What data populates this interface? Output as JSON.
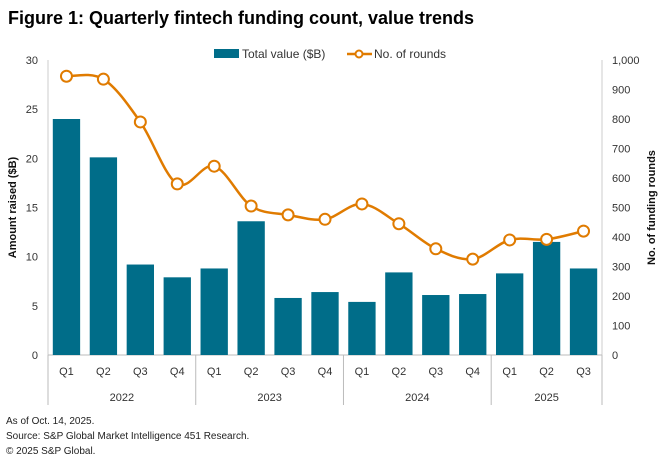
{
  "chart_data": {
    "type": "bar+line",
    "title": "Figure 1: Quarterly fintech funding count, value trends",
    "categories": [
      "Q1",
      "Q2",
      "Q3",
      "Q4",
      "Q1",
      "Q2",
      "Q3",
      "Q4",
      "Q1",
      "Q2",
      "Q3",
      "Q4",
      "Q1",
      "Q2",
      "Q3"
    ],
    "years": [
      "2022",
      "2023",
      "2024",
      "2025"
    ],
    "series": [
      {
        "name": "Total value ($B)",
        "type": "bar",
        "axis": "left",
        "color": "#006d89",
        "values": [
          24.0,
          20.1,
          9.2,
          7.9,
          8.8,
          13.6,
          5.8,
          6.4,
          5.4,
          8.4,
          6.1,
          6.2,
          8.3,
          11.5,
          8.8
        ]
      },
      {
        "name": "No. of rounds",
        "type": "line",
        "axis": "right",
        "color": "#e07b00",
        "values": [
          945,
          935,
          790,
          580,
          640,
          505,
          475,
          460,
          512,
          445,
          360,
          325,
          390,
          392,
          420
        ]
      }
    ],
    "ylabel": "Amount raised ($B)",
    "ylim": [
      0,
      30
    ],
    "yticks": [
      "0",
      "5",
      "10",
      "15",
      "20",
      "25",
      "30"
    ],
    "y2label": "No. of funding rounds",
    "y2lim": [
      0,
      1000
    ],
    "y2ticks": [
      "0",
      "100",
      "200",
      "300",
      "400",
      "500",
      "600",
      "700",
      "800",
      "900",
      "1,000"
    ],
    "legend": "top-center"
  },
  "footer": {
    "note": "As of Oct. 14, 2025.",
    "source": "Source: S&P Global Market Intelligence 451 Research.",
    "copyright": "© 2025 S&P Global."
  }
}
